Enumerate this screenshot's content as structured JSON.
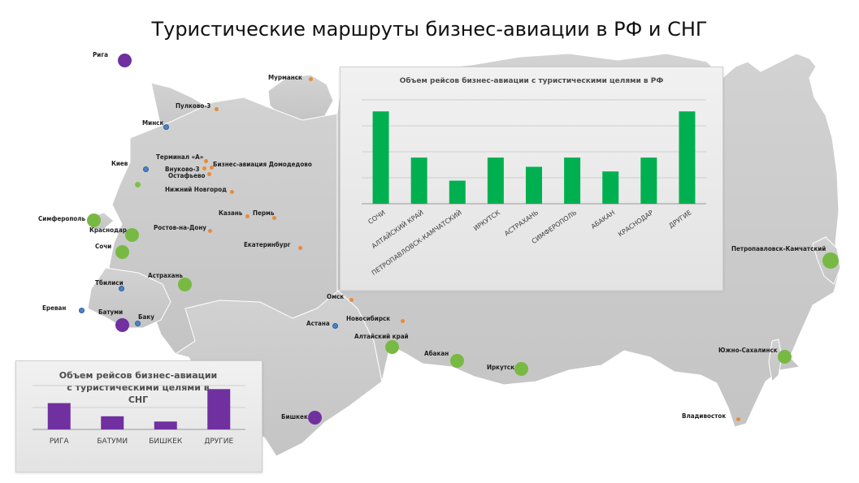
{
  "title": "Туристические маршруты бизнес-авиации в РФ и СНГ",
  "colors": {
    "rf_bar": "#00b050",
    "cis_bar": "#7030a0",
    "map": "#c9c9c9",
    "orange_dot": "#e98b3a",
    "blue_dot": "#4a84c8",
    "green_dot": "#78b944",
    "purple_dot": "#7030a0"
  },
  "map_labels": {
    "riga": "Рига",
    "murmansk": "Мурманск",
    "pulkovo": "Пулково-3",
    "minsk": "Минск",
    "terminal_a": "Терминал «А»",
    "vnukovo": "Внуково-3",
    "ostafyevo": "Остафьево",
    "domodedovo": "Бизнес-авиация Домодедово",
    "kiev": "Киев",
    "nizhny": "Нижний Новгород",
    "simferopol": "Симферополь",
    "kazan": "Казань",
    "perm": "Пермь",
    "krasnodar": "Краснодар",
    "rostov": "Ростов-на-Дону",
    "sochi": "Сочи",
    "ekaterinburg": "Екатеринбург",
    "astrakhan": "Астрахань",
    "tbilisi": "Тбилиси",
    "omsk": "Омск",
    "erevan": "Ереван",
    "batumi": "Батуми",
    "baku": "Баку",
    "novosibirsk": "Новосибирск",
    "astana": "Астана",
    "altai": "Алтайский край",
    "abakan": "Абакан",
    "irkutsk": "Иркутск",
    "petropavlovsk": "Петропавловск-Камчатский",
    "yuzhno": "Южно-Сахалинск",
    "bishkek": "Бишкек",
    "vladivostok": "Владивосток"
  },
  "chart_data": [
    {
      "type": "bar",
      "title": "Объем рейсов бизнес-авиации с туристическими целями в РФ",
      "categories": [
        "СОЧИ",
        "АЛТАЙСКИЙ КРАЙ",
        "ПЕТРОПАВЛОВСК-КАМЧАТСКИЙ",
        "ИРКУТСК",
        "АСТРАХАНЬ",
        "СИМФЕРОПОЛЬ",
        "АБАКАН",
        "КРАСНОДАР",
        "ДРУГИЕ"
      ],
      "values": [
        4,
        2,
        1,
        2,
        1.6,
        2,
        1.4,
        2,
        4
      ],
      "ylim": [
        0,
        4.5
      ],
      "grid": true,
      "color": "#00b050"
    },
    {
      "type": "bar",
      "title": "Объем рейсов бизнес-авиации с туристическими целями в СНГ",
      "categories": [
        "РИГА",
        "БАТУМИ",
        "БИШКЕК",
        "ДРУГИЕ"
      ],
      "values": [
        3,
        1.5,
        0.9,
        4.6
      ],
      "ylim": [
        0,
        5
      ],
      "grid": true,
      "color": "#7030a0"
    }
  ]
}
